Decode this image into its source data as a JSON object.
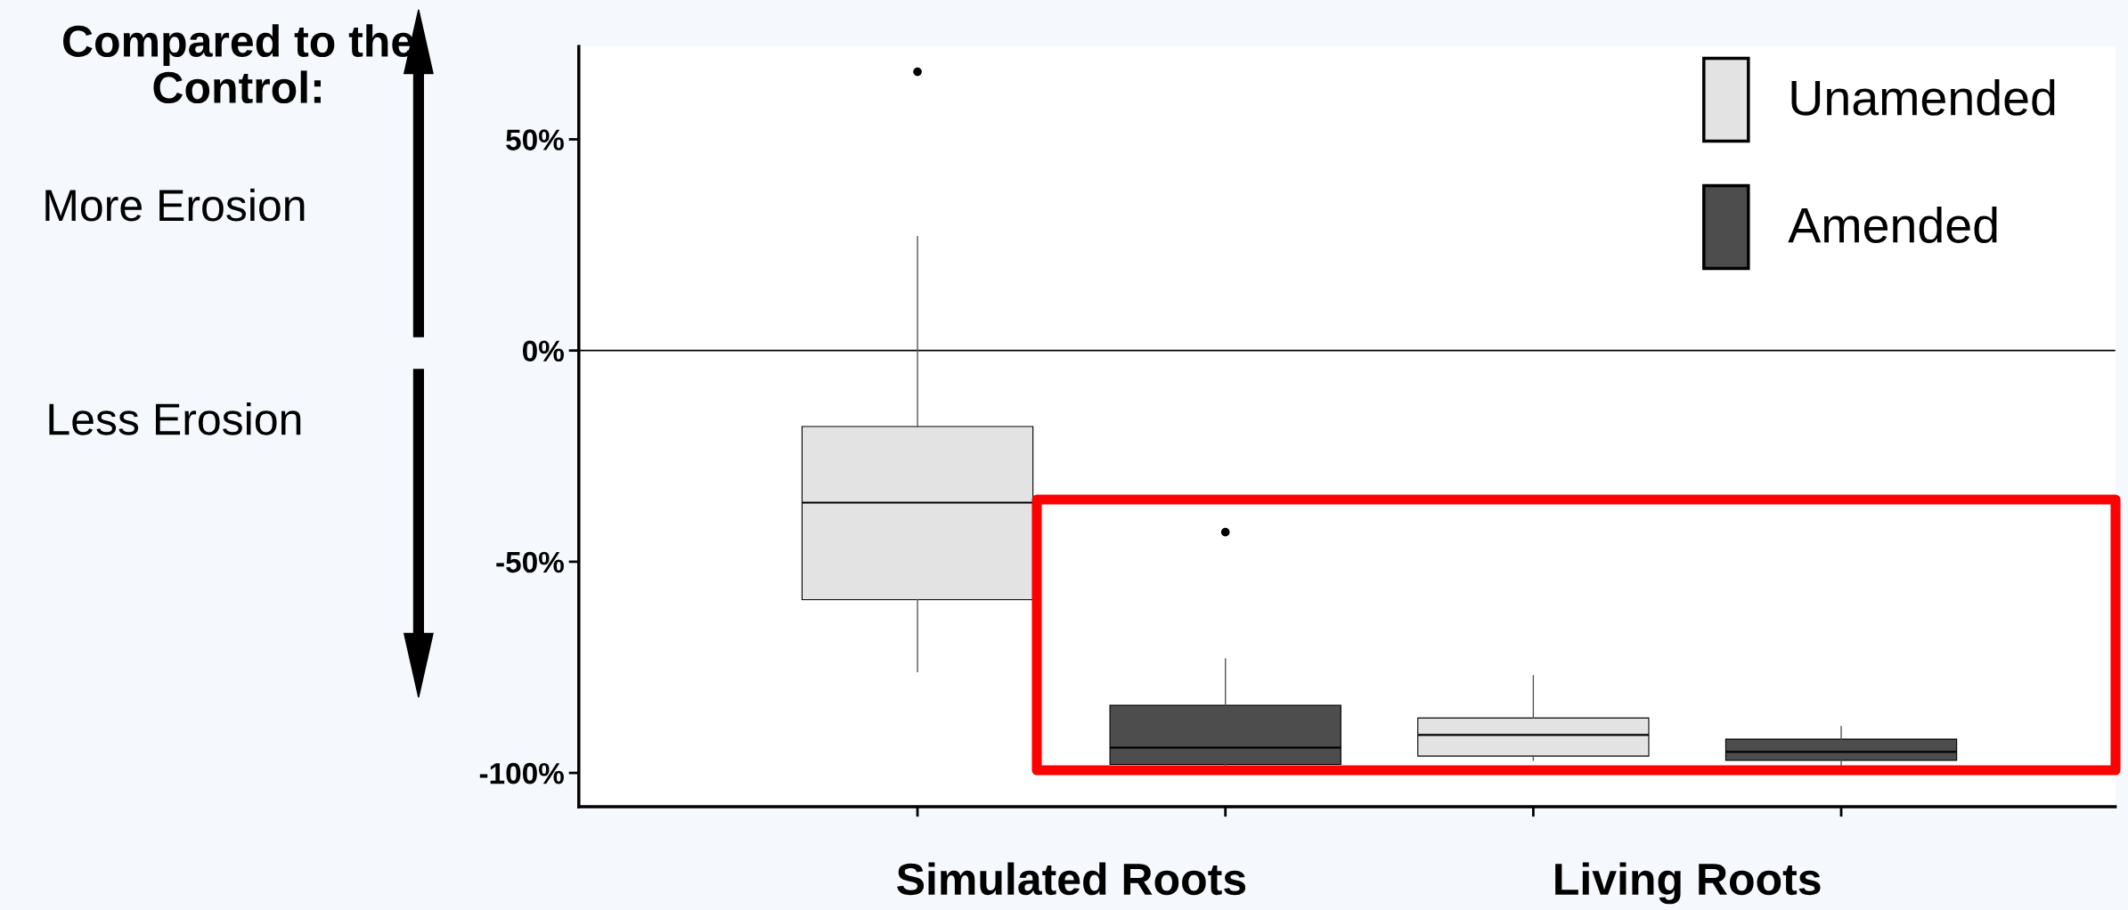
{
  "chart_data": {
    "type": "box",
    "categories": [
      "Simulated Roots",
      "Living Roots"
    ],
    "series": [
      {
        "name": "Unamended",
        "color": "#e3e3e3",
        "boxes": [
          {
            "low": -76,
            "q1": -59,
            "median": -36,
            "q3": -18,
            "high": 27,
            "outliers": [
              66
            ]
          },
          {
            "low": -97,
            "q1": -96,
            "median": -91,
            "q3": -87,
            "high": -77
          }
        ]
      },
      {
        "name": "Amended",
        "color": "#4d4d4d",
        "boxes": [
          {
            "low": -99,
            "q1": -98,
            "median": -94,
            "q3": -84,
            "high": -73,
            "outliers": [
              -43
            ]
          },
          {
            "low": -99,
            "q1": -97,
            "median": -95,
            "q3": -92,
            "high": -89
          }
        ]
      }
    ],
    "ylim": [
      -108,
      72
    ],
    "yticks": [
      {
        "value": -100,
        "label": "-100%"
      },
      {
        "value": -50,
        "label": "-50%"
      },
      {
        "value": 0,
        "label": "0%"
      },
      {
        "value": 50,
        "label": "50%"
      }
    ],
    "ref_lines": [
      {
        "axis": "y",
        "value": 0,
        "color": "#000000"
      }
    ],
    "annotations": [
      "Compared to the Control:",
      "More Erosion",
      "Less Erosion"
    ],
    "legend": "top right",
    "grid": false
  }
}
